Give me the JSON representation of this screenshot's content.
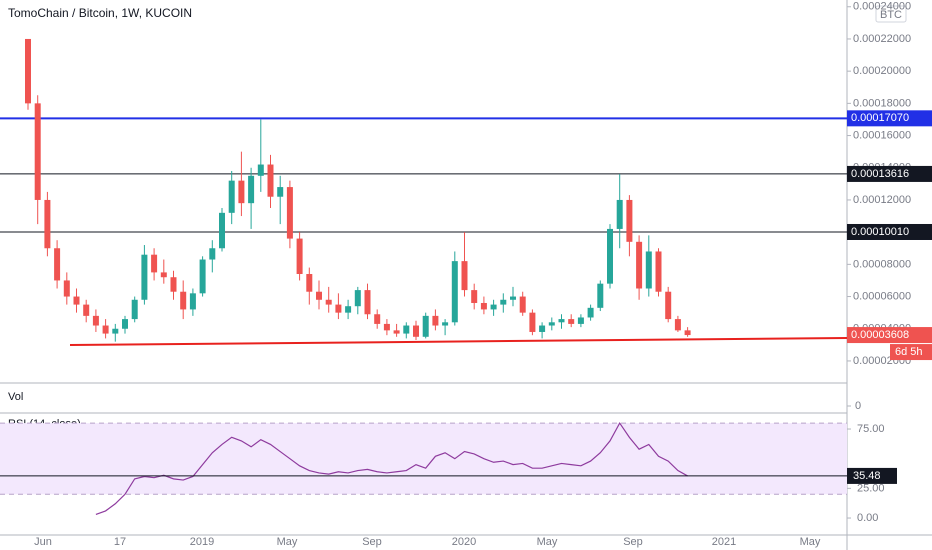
{
  "chart_data": {
    "type": "candlestick",
    "title": "TomoChain / Bitcoin, 1W, KUCOIN",
    "currency": "BTC",
    "up_color": "#26a69a",
    "down_color": "#ef5350",
    "candles": [
      [
        0.00022,
        0.00022,
        0.000176,
        0.00018
      ],
      [
        0.00018,
        0.000185,
        0.000105,
        0.00012
      ],
      [
        0.00012,
        0.000125,
        8.5e-05,
        9e-05
      ],
      [
        9e-05,
        9.5e-05,
        6.5e-05,
        7e-05
      ],
      [
        7e-05,
        7.5e-05,
        5.5e-05,
        6e-05
      ],
      [
        6e-05,
        6.5e-05,
        5e-05,
        5.5e-05
      ],
      [
        5.5e-05,
        5.8e-05,
        4.4e-05,
        4.8e-05
      ],
      [
        4.8e-05,
        5.2e-05,
        3.8e-05,
        4.2e-05
      ],
      [
        4.2e-05,
        4.6e-05,
        3.4e-05,
        3.7e-05
      ],
      [
        3.7e-05,
        4.3e-05,
        3.2e-05,
        4e-05
      ],
      [
        4e-05,
        4.8e-05,
        3.7e-05,
        4.6e-05
      ],
      [
        4.6e-05,
        6e-05,
        4.4e-05,
        5.8e-05
      ],
      [
        5.8e-05,
        9.2e-05,
        5.5e-05,
        8.6e-05
      ],
      [
        8.6e-05,
        9e-05,
        7e-05,
        7.5e-05
      ],
      [
        7.5e-05,
        8.3e-05,
        6.8e-05,
        7.2e-05
      ],
      [
        7.2e-05,
        7.6e-05,
        5.8e-05,
        6.3e-05
      ],
      [
        6.3e-05,
        7e-05,
        4.6e-05,
        5.2e-05
      ],
      [
        5.2e-05,
        6.5e-05,
        4.8e-05,
        6.2e-05
      ],
      [
        6.2e-05,
        8.5e-05,
        6e-05,
        8.3e-05
      ],
      [
        8.3e-05,
        9.5e-05,
        7.5e-05,
        9e-05
      ],
      [
        9e-05,
        0.000115,
        8.8e-05,
        0.000112
      ],
      [
        0.000112,
        0.000138,
        0.000105,
        0.000132
      ],
      [
        0.000132,
        0.00015,
        0.00011,
        0.000118
      ],
      [
        0.000118,
        0.00014,
        0.000102,
        0.000135
      ],
      [
        0.000135,
        0.00017,
        0.000125,
        0.000142
      ],
      [
        0.000142,
        0.000148,
        0.000115,
        0.000122
      ],
      [
        0.000122,
        0.000135,
        0.000105,
        0.000128
      ],
      [
        0.000128,
        0.000132,
        9e-05,
        9.6e-05
      ],
      [
        9.6e-05,
        0.0001,
        7e-05,
        7.4e-05
      ],
      [
        7.4e-05,
        7.8e-05,
        5.5e-05,
        6.3e-05
      ],
      [
        6.3e-05,
        7e-05,
        5.2e-05,
        5.8e-05
      ],
      [
        5.8e-05,
        6.6e-05,
        5e-05,
        5.5e-05
      ],
      [
        5.5e-05,
        6.2e-05,
        4.6e-05,
        5e-05
      ],
      [
        5e-05,
        5.8e-05,
        4.6e-05,
        5.4e-05
      ],
      [
        5.4e-05,
        6.6e-05,
        4.9e-05,
        6.4e-05
      ],
      [
        6.4e-05,
        6.8e-05,
        4.6e-05,
        4.9e-05
      ],
      [
        4.9e-05,
        5.2e-05,
        4e-05,
        4.3e-05
      ],
      [
        4.3e-05,
        4.6e-05,
        3.6e-05,
        3.9e-05
      ],
      [
        3.9e-05,
        4.3e-05,
        3.5e-05,
        3.7e-05
      ],
      [
        3.7e-05,
        4.4e-05,
        3.4e-05,
        4.2e-05
      ],
      [
        4.2e-05,
        4.5e-05,
        3.3e-05,
        3.5e-05
      ],
      [
        3.5e-05,
        5e-05,
        3.4e-05,
        4.8e-05
      ],
      [
        4.8e-05,
        5.2e-05,
        3.9e-05,
        4.2e-05
      ],
      [
        4.2e-05,
        4.6e-05,
        3.6e-05,
        4.4e-05
      ],
      [
        4.4e-05,
        8.8e-05,
        4.2e-05,
        8.2e-05
      ],
      [
        8.2e-05,
        0.0001,
        6e-05,
        6.4e-05
      ],
      [
        6.4e-05,
        6.8e-05,
        5.2e-05,
        5.6e-05
      ],
      [
        5.6e-05,
        6e-05,
        4.9e-05,
        5.2e-05
      ],
      [
        5.2e-05,
        5.8e-05,
        4.8e-05,
        5.5e-05
      ],
      [
        5.5e-05,
        6.2e-05,
        5e-05,
        5.8e-05
      ],
      [
        5.8e-05,
        6.6e-05,
        5.4e-05,
        6e-05
      ],
      [
        6e-05,
        6.3e-05,
        4.8e-05,
        5e-05
      ],
      [
        5e-05,
        5.2e-05,
        3.6e-05,
        3.8e-05
      ],
      [
        3.8e-05,
        4.4e-05,
        3.4e-05,
        4.2e-05
      ],
      [
        4.2e-05,
        4.7e-05,
        3.9e-05,
        4.4e-05
      ],
      [
        4.4e-05,
        4.9e-05,
        4e-05,
        4.6e-05
      ],
      [
        4.6e-05,
        4.9e-05,
        4.1e-05,
        4.3e-05
      ],
      [
        4.3e-05,
        4.9e-05,
        4.1e-05,
        4.7e-05
      ],
      [
        4.7e-05,
        5.5e-05,
        4.5e-05,
        5.3e-05
      ],
      [
        5.3e-05,
        7e-05,
        5.1e-05,
        6.8e-05
      ],
      [
        6.8e-05,
        0.000105,
        6.5e-05,
        0.000102
      ],
      [
        0.000102,
        0.000136,
        9e-05,
        0.00012
      ],
      [
        0.00012,
        0.000123,
        8.5e-05,
        9.4e-05
      ],
      [
        9.4e-05,
        9.8e-05,
        5.8e-05,
        6.5e-05
      ],
      [
        6.5e-05,
        9.8e-05,
        6e-05,
        8.8e-05
      ],
      [
        8.8e-05,
        9e-05,
        6e-05,
        6.3e-05
      ],
      [
        6.3e-05,
        6.6e-05,
        4.4e-05,
        4.6e-05
      ],
      [
        4.6e-05,
        4.8e-05,
        3.8e-05,
        3.9e-05
      ],
      [
        3.9e-05,
        4.1e-05,
        3.5e-05,
        3.608e-05
      ]
    ],
    "ylim": [
      6.3e-06,
      0.0002442
    ],
    "yticks": [
      {
        "value": 2e-05,
        "label": "0.00002000"
      },
      {
        "value": 4e-05,
        "label": "0.00004000"
      },
      {
        "value": 6e-05,
        "label": "0.00006000"
      },
      {
        "value": 8e-05,
        "label": "0.00008000"
      },
      {
        "value": 0.0001,
        "label": "0.00010000"
      },
      {
        "value": 0.00012,
        "label": "0.00012000"
      },
      {
        "value": 0.00014,
        "label": "0.00014000"
      },
      {
        "value": 0.00016,
        "label": "0.00016000"
      },
      {
        "value": 0.00018,
        "label": "0.00018000"
      },
      {
        "value": 0.0002,
        "label": "0.00020000"
      },
      {
        "value": 0.00022,
        "label": "0.00022000"
      },
      {
        "value": 0.00024,
        "label": "0.00024000"
      }
    ],
    "hlines": [
      {
        "value": 0.0001707,
        "label": "0.00017070",
        "color": "#2130e6"
      },
      {
        "value": 0.00013616,
        "label": "0.00013616",
        "color": "#131722"
      },
      {
        "value": 0.0001001,
        "label": "0.00010010",
        "color": "#131722"
      }
    ],
    "last_price": {
      "value": 3.608e-05,
      "label": "0.00003608"
    },
    "countdown": "6d 5h",
    "xtick_labels": [
      "Jun",
      "17",
      "2019",
      "May",
      "Sep",
      "2020",
      "May",
      "Sep",
      "2021",
      "May"
    ],
    "volume": {
      "label": "Vol",
      "yticks": [
        0
      ]
    },
    "rsi": {
      "label": "RSI (14, close)",
      "color": "#8e3b9e",
      "values": [
        null,
        null,
        null,
        null,
        null,
        null,
        null,
        3,
        6,
        12,
        20,
        33,
        35,
        34,
        36,
        33,
        32,
        35,
        45,
        55,
        62,
        68,
        65,
        60,
        66,
        62,
        56,
        50,
        44,
        40,
        38,
        37,
        39,
        38,
        40,
        41,
        39,
        38,
        39,
        40,
        45,
        42,
        52,
        55,
        50,
        56,
        54,
        50,
        47,
        48,
        45,
        46,
        42,
        42,
        44,
        46,
        45,
        44,
        48,
        55,
        65,
        80,
        68,
        58,
        62,
        52,
        48,
        40,
        35.48
      ],
      "ylim": [
        -14.3,
        88.5
      ],
      "yticks": [
        {
          "value": 0,
          "label": "0.00"
        },
        {
          "value": 25,
          "label": "25.00"
        },
        {
          "value": 75,
          "label": "75.00"
        }
      ],
      "bands": [
        20,
        80
      ]
    }
  }
}
